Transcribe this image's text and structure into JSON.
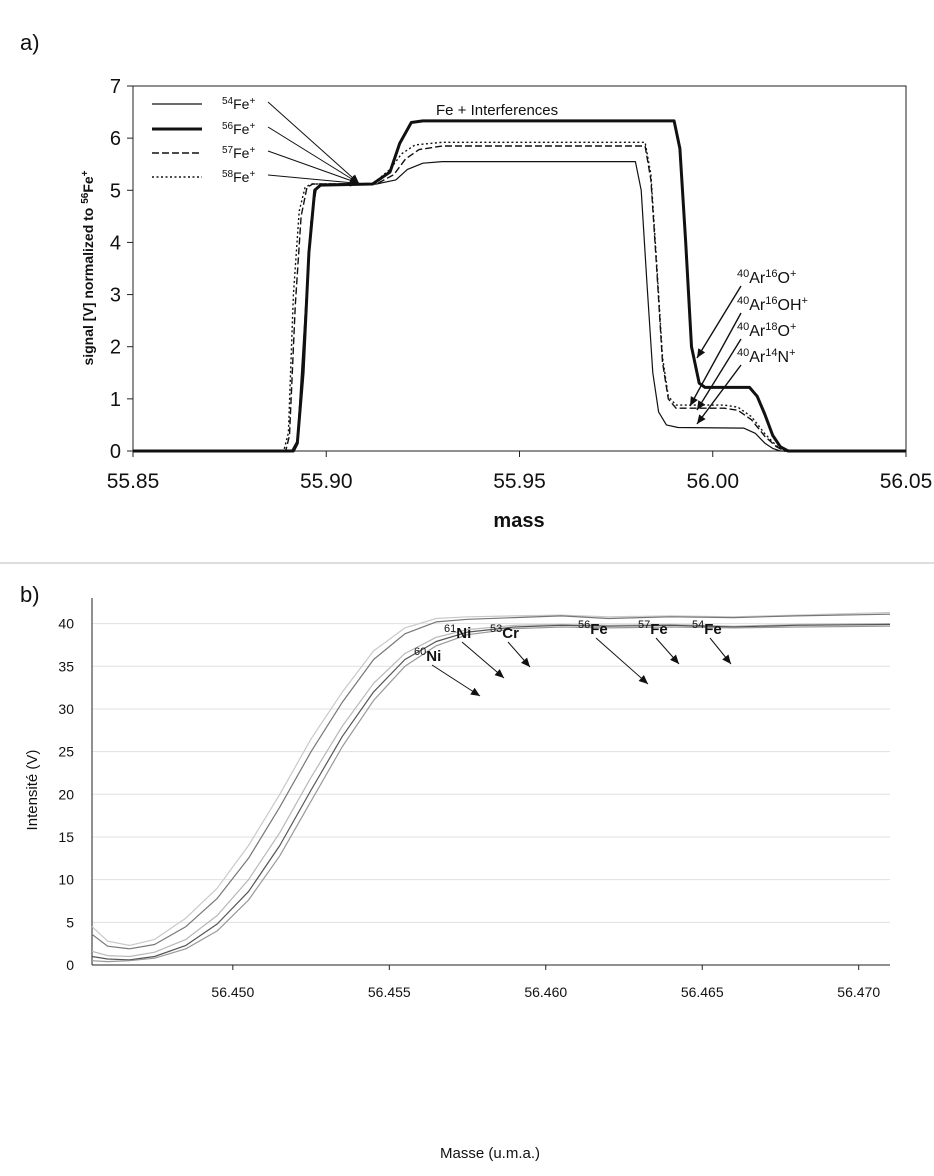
{
  "chart_data": [
    {
      "panel_label": "a)",
      "type": "line",
      "xlabel": "mass",
      "ylabel": "signal [V] normalized to ⁵⁶Fe⁺",
      "xlim": [
        55.85,
        56.05
      ],
      "ylim": [
        0,
        7
      ],
      "x_ticks": [
        "55.85",
        "55.90",
        "55.95",
        "56.00",
        "56.05"
      ],
      "y_ticks": [
        "0",
        "1",
        "2",
        "3",
        "4",
        "5",
        "6",
        "7"
      ],
      "grid": false,
      "legend_position": "top-left",
      "legend": [
        {
          "sup": "54",
          "base": "Fe",
          "charge": "+",
          "style": "solid-thin"
        },
        {
          "sup": "56",
          "base": "Fe",
          "charge": "+",
          "style": "solid-thick"
        },
        {
          "sup": "57",
          "base": "Fe",
          "charge": "+",
          "style": "dashed"
        },
        {
          "sup": "58",
          "base": "Fe",
          "charge": "+",
          "style": "dotted"
        }
      ],
      "annotations": [
        {
          "text": "Fe + Interferences"
        },
        {
          "sup1": "40",
          "el1": "Ar",
          "sup2": "16",
          "el2": "O",
          "charge": "+"
        },
        {
          "sup1": "40",
          "el1": "Ar",
          "sup2": "16",
          "el2": "OH",
          "charge": "+"
        },
        {
          "sup1": "40",
          "el1": "Ar",
          "sup2": "18",
          "el2": "O",
          "charge": "+"
        },
        {
          "sup1": "40",
          "el1": "Ar",
          "sup2": "14",
          "el2": "N",
          "charge": "+"
        }
      ],
      "series": [
        {
          "style": "solid-thick",
          "points": [
            [
              55.85,
              0
            ],
            [
              55.8915,
              0
            ],
            [
              55.8925,
              0.15
            ],
            [
              55.894,
              1.5
            ],
            [
              55.8955,
              3.8
            ],
            [
              55.897,
              5.0
            ],
            [
              55.8985,
              5.1
            ],
            [
              55.912,
              5.12
            ],
            [
              55.9165,
              5.35
            ],
            [
              55.919,
              5.9
            ],
            [
              55.922,
              6.3
            ],
            [
              55.925,
              6.33
            ],
            [
              55.99,
              6.33
            ],
            [
              55.9915,
              5.8
            ],
            [
              55.993,
              4.0
            ],
            [
              55.9945,
              2.0
            ],
            [
              55.9965,
              1.3
            ],
            [
              55.998,
              1.22
            ],
            [
              56.0095,
              1.22
            ],
            [
              56.0115,
              1.05
            ],
            [
              56.0135,
              0.7
            ],
            [
              56.0155,
              0.3
            ],
            [
              56.0175,
              0.08
            ],
            [
              56.0195,
              0
            ],
            [
              56.05,
              0
            ]
          ]
        },
        {
          "style": "solid-thin",
          "points": [
            [
              55.85,
              0
            ],
            [
              55.891,
              0
            ],
            [
              55.8925,
              0.2
            ],
            [
              55.8945,
              2.6
            ],
            [
              55.896,
              4.4
            ],
            [
              55.8975,
              5.05
            ],
            [
              55.8995,
              5.12
            ],
            [
              55.913,
              5.12
            ],
            [
              55.918,
              5.2
            ],
            [
              55.921,
              5.4
            ],
            [
              55.925,
              5.52
            ],
            [
              55.93,
              5.55
            ],
            [
              55.98,
              5.55
            ],
            [
              55.9815,
              5.0
            ],
            [
              55.983,
              3.2
            ],
            [
              55.9845,
              1.5
            ],
            [
              55.986,
              0.75
            ],
            [
              55.988,
              0.5
            ],
            [
              55.991,
              0.45
            ],
            [
              56.008,
              0.44
            ],
            [
              56.011,
              0.34
            ],
            [
              56.0135,
              0.15
            ],
            [
              56.0155,
              0.05
            ],
            [
              56.0175,
              0
            ],
            [
              56.05,
              0
            ]
          ]
        },
        {
          "style": "dashed",
          "points": [
            [
              55.85,
              0
            ],
            [
              55.8895,
              0
            ],
            [
              55.8905,
              0.3
            ],
            [
              55.892,
              2.8
            ],
            [
              55.8935,
              4.5
            ],
            [
              55.895,
              5.05
            ],
            [
              55.8965,
              5.12
            ],
            [
              55.913,
              5.12
            ],
            [
              55.9175,
              5.3
            ],
            [
              55.9205,
              5.6
            ],
            [
              55.924,
              5.78
            ],
            [
              55.93,
              5.85
            ],
            [
              55.9825,
              5.85
            ],
            [
              55.984,
              5.2
            ],
            [
              55.9855,
              3.5
            ],
            [
              55.987,
              1.7
            ],
            [
              55.9885,
              1.0
            ],
            [
              55.9905,
              0.82
            ],
            [
              56.003,
              0.82
            ],
            [
              56.0065,
              0.78
            ],
            [
              56.01,
              0.6
            ],
            [
              56.0135,
              0.28
            ],
            [
              56.0165,
              0.08
            ],
            [
              56.0185,
              0
            ],
            [
              56.05,
              0
            ]
          ]
        },
        {
          "style": "dotted",
          "points": [
            [
              55.85,
              0
            ],
            [
              55.889,
              0
            ],
            [
              55.8902,
              0.35
            ],
            [
              55.8915,
              3.0
            ],
            [
              55.893,
              4.6
            ],
            [
              55.8945,
              5.05
            ],
            [
              55.896,
              5.12
            ],
            [
              55.912,
              5.12
            ],
            [
              55.9165,
              5.4
            ],
            [
              55.9195,
              5.7
            ],
            [
              55.923,
              5.87
            ],
            [
              55.93,
              5.92
            ],
            [
              55.9825,
              5.92
            ],
            [
              55.984,
              5.3
            ],
            [
              55.9855,
              3.6
            ],
            [
              55.987,
              1.8
            ],
            [
              55.9885,
              1.05
            ],
            [
              55.9905,
              0.88
            ],
            [
              56.003,
              0.88
            ],
            [
              56.0065,
              0.84
            ],
            [
              56.01,
              0.66
            ],
            [
              56.0135,
              0.33
            ],
            [
              56.0165,
              0.1
            ],
            [
              56.0185,
              0
            ],
            [
              56.05,
              0
            ]
          ]
        }
      ]
    },
    {
      "panel_label": "b)",
      "type": "line",
      "xlabel": "Masse (u.m.a.)",
      "ylabel": "Intensité (V)",
      "xlim": [
        56.4455,
        56.471
      ],
      "ylim": [
        0,
        43
      ],
      "x_ticks": [
        "56.450",
        "56.455",
        "56.460",
        "56.465",
        "56.470"
      ],
      "y_ticks": [
        "0",
        "5",
        "10",
        "15",
        "20",
        "25",
        "30",
        "35",
        "40"
      ],
      "grid": true,
      "labels": [
        {
          "sup": "60",
          "base": "Ni"
        },
        {
          "sup": "61",
          "base": "Ni"
        },
        {
          "sup": "53",
          "base": "Cr"
        },
        {
          "sup": "56",
          "base": "Fe"
        },
        {
          "sup": "57",
          "base": "Fe"
        },
        {
          "sup": "54",
          "base": "Fe"
        }
      ],
      "series": [
        {
          "color": "#c9c9c9",
          "points": [
            [
              56.4455,
              4.5
            ],
            [
              56.446,
              2.8
            ],
            [
              56.4467,
              2.3
            ],
            [
              56.4475,
              3.0
            ],
            [
              56.4485,
              5.5
            ],
            [
              56.4495,
              9.0
            ],
            [
              56.4505,
              14.0
            ],
            [
              56.4515,
              20.0
            ],
            [
              56.4525,
              26.5
            ],
            [
              56.4535,
              32.0
            ],
            [
              56.4545,
              36.8
            ],
            [
              56.4555,
              39.5
            ],
            [
              56.4565,
              40.6
            ],
            [
              56.4575,
              40.8
            ],
            [
              56.459,
              40.9
            ],
            [
              56.4605,
              41.0
            ],
            [
              56.462,
              40.8
            ],
            [
              56.464,
              40.9
            ],
            [
              56.466,
              40.8
            ],
            [
              56.468,
              41.0
            ],
            [
              56.471,
              41.3
            ]
          ]
        },
        {
          "color": "#777777",
          "points": [
            [
              56.4455,
              3.6
            ],
            [
              56.446,
              2.2
            ],
            [
              56.4467,
              1.9
            ],
            [
              56.4475,
              2.4
            ],
            [
              56.4485,
              4.5
            ],
            [
              56.4495,
              7.8
            ],
            [
              56.4505,
              12.5
            ],
            [
              56.4515,
              18.5
            ],
            [
              56.4525,
              25.0
            ],
            [
              56.4535,
              30.8
            ],
            [
              56.4545,
              35.8
            ],
            [
              56.4555,
              38.8
            ],
            [
              56.4565,
              40.2
            ],
            [
              56.4575,
              40.5
            ],
            [
              56.459,
              40.7
            ],
            [
              56.4605,
              40.9
            ],
            [
              56.462,
              40.6
            ],
            [
              56.464,
              40.8
            ],
            [
              56.466,
              40.7
            ],
            [
              56.468,
              40.9
            ],
            [
              56.471,
              41.1
            ]
          ]
        },
        {
          "color": "#b8b8b8",
          "points": [
            [
              56.4455,
              1.6
            ],
            [
              56.446,
              1.1
            ],
            [
              56.4467,
              1.0
            ],
            [
              56.4475,
              1.5
            ],
            [
              56.4485,
              3.0
            ],
            [
              56.4495,
              5.8
            ],
            [
              56.4505,
              10.0
            ],
            [
              56.4515,
              15.5
            ],
            [
              56.4525,
              22.0
            ],
            [
              56.4535,
              28.0
            ],
            [
              56.4545,
              33.0
            ],
            [
              56.4555,
              36.5
            ],
            [
              56.4565,
              38.4
            ],
            [
              56.4575,
              39.3
            ],
            [
              56.459,
              39.8
            ],
            [
              56.4605,
              39.9
            ],
            [
              56.462,
              39.8
            ],
            [
              56.464,
              39.9
            ],
            [
              56.466,
              39.7
            ],
            [
              56.468,
              39.9
            ],
            [
              56.471,
              40.0
            ]
          ]
        },
        {
          "color": "#555555",
          "points": [
            [
              56.4455,
              1.0
            ],
            [
              56.446,
              0.7
            ],
            [
              56.4467,
              0.6
            ],
            [
              56.4475,
              1.0
            ],
            [
              56.4485,
              2.3
            ],
            [
              56.4495,
              4.8
            ],
            [
              56.4505,
              8.6
            ],
            [
              56.4515,
              14.0
            ],
            [
              56.4525,
              20.5
            ],
            [
              56.4535,
              26.8
            ],
            [
              56.4545,
              32.0
            ],
            [
              56.4555,
              35.8
            ],
            [
              56.4565,
              37.9
            ],
            [
              56.4575,
              39.0
            ],
            [
              56.459,
              39.6
            ],
            [
              56.4605,
              39.8
            ],
            [
              56.462,
              39.7
            ],
            [
              56.464,
              39.8
            ],
            [
              56.466,
              39.6
            ],
            [
              56.468,
              39.8
            ],
            [
              56.471,
              39.9
            ]
          ]
        },
        {
          "color": "#999999",
          "points": [
            [
              56.4455,
              0.5
            ],
            [
              56.446,
              0.4
            ],
            [
              56.4467,
              0.5
            ],
            [
              56.4475,
              0.8
            ],
            [
              56.4485,
              1.9
            ],
            [
              56.4495,
              4.0
            ],
            [
              56.4505,
              7.6
            ],
            [
              56.4515,
              12.8
            ],
            [
              56.4525,
              19.2
            ],
            [
              56.4535,
              25.6
            ],
            [
              56.4545,
              31.0
            ],
            [
              56.4555,
              35.0
            ],
            [
              56.4565,
              37.4
            ],
            [
              56.4575,
              38.7
            ],
            [
              56.459,
              39.4
            ],
            [
              56.4605,
              39.6
            ],
            [
              56.462,
              39.5
            ],
            [
              56.464,
              39.6
            ],
            [
              56.466,
              39.5
            ],
            [
              56.468,
              39.6
            ],
            [
              56.471,
              39.7
            ]
          ]
        }
      ]
    }
  ]
}
